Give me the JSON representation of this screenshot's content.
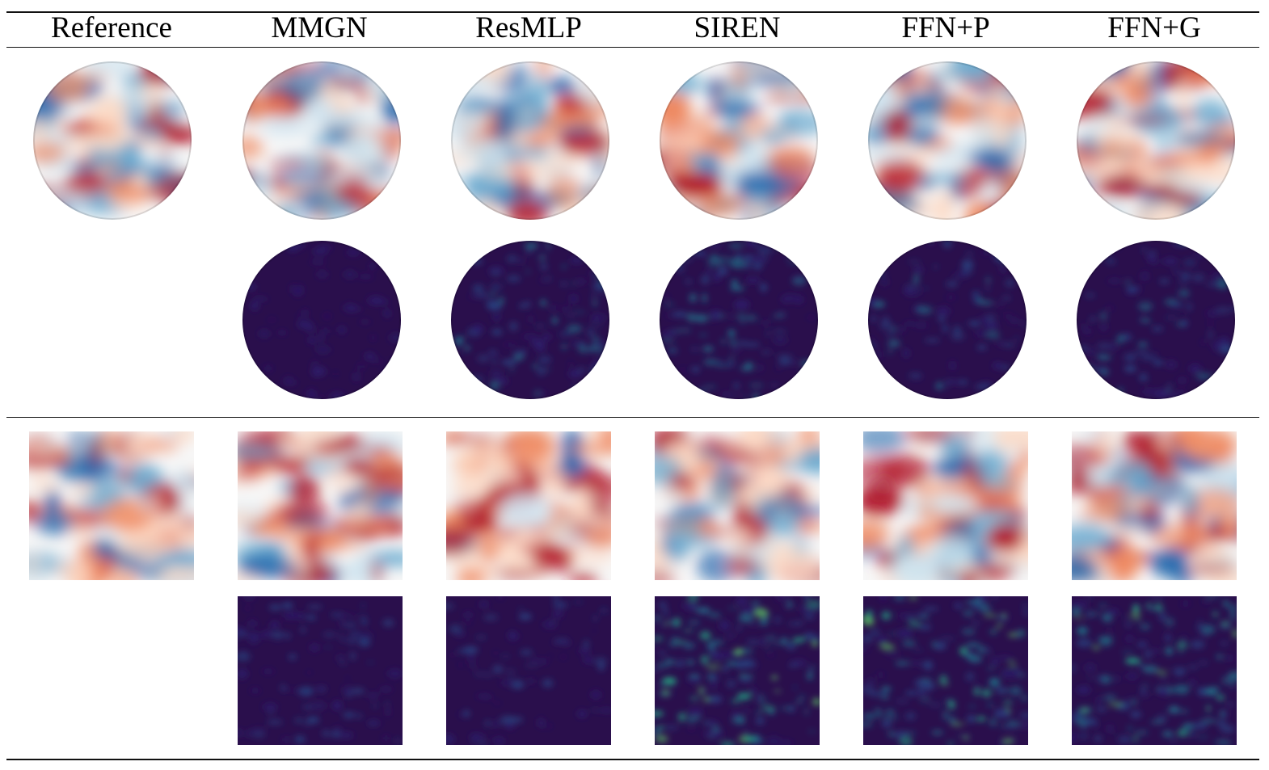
{
  "columns": [
    {
      "key": "reference",
      "label": "Reference"
    },
    {
      "key": "mmgn",
      "label": "MMGN"
    },
    {
      "key": "resmlp",
      "label": "ResMLP"
    },
    {
      "key": "siren",
      "label": "SIREN"
    },
    {
      "key": "ffn_p",
      "label": "FFN+P"
    },
    {
      "key": "ffn_g",
      "label": "FFN+G"
    }
  ],
  "colormaps": {
    "field": [
      "#2166ac",
      "#67a9cf",
      "#d1e5f0",
      "#f7f7f7",
      "#fddbc7",
      "#ef8a62",
      "#b2182b"
    ],
    "error": [
      "#2a0f4c",
      "#2d1e6e",
      "#28427f",
      "#21738a",
      "#23a884",
      "#5ec962"
    ]
  }
}
